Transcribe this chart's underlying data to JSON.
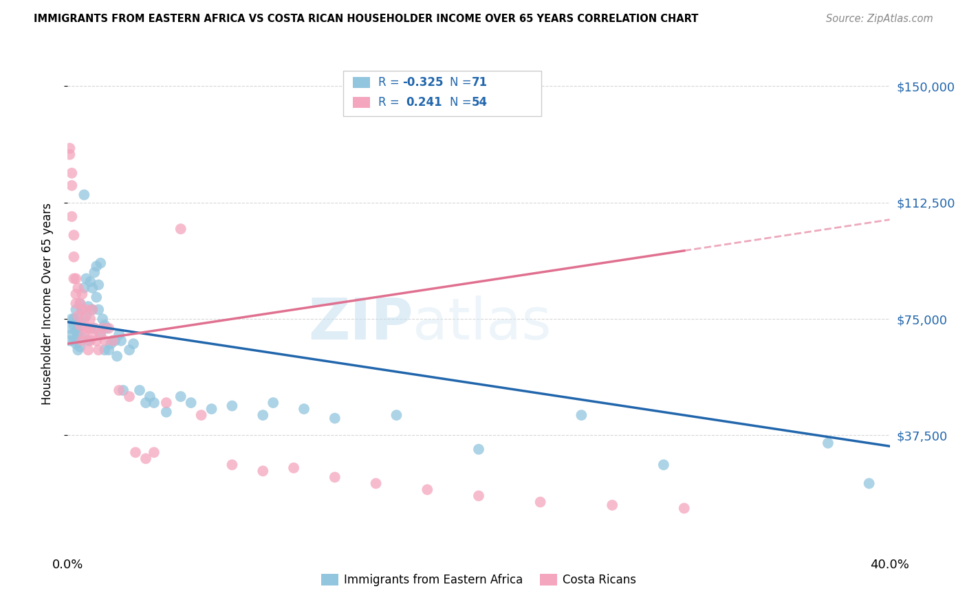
{
  "title": "IMMIGRANTS FROM EASTERN AFRICA VS COSTA RICAN HOUSEHOLDER INCOME OVER 65 YEARS CORRELATION CHART",
  "source": "Source: ZipAtlas.com",
  "ylabel": "Householder Income Over 65 years",
  "xlim": [
    0.0,
    0.4
  ],
  "ylim": [
    0,
    160000
  ],
  "yticks": [
    37500,
    75000,
    112500,
    150000
  ],
  "ytick_labels": [
    "$37,500",
    "$75,000",
    "$112,500",
    "$150,000"
  ],
  "xticks": [
    0.0,
    0.08,
    0.16,
    0.24,
    0.32,
    0.4
  ],
  "blue_color": "#92c5de",
  "pink_color": "#f4a6be",
  "blue_line_color": "#2166ac",
  "pink_line_color": "#e07090",
  "watermark_zip": "ZIP",
  "watermark_atlas": "atlas",
  "blue_r": "-0.325",
  "blue_n": "71",
  "pink_r": "0.241",
  "pink_n": "54",
  "blue_scatter_x": [
    0.001,
    0.001,
    0.002,
    0.002,
    0.003,
    0.003,
    0.003,
    0.004,
    0.004,
    0.004,
    0.005,
    0.005,
    0.005,
    0.005,
    0.006,
    0.006,
    0.006,
    0.007,
    0.007,
    0.007,
    0.008,
    0.008,
    0.009,
    0.009,
    0.01,
    0.01,
    0.011,
    0.011,
    0.012,
    0.012,
    0.013,
    0.013,
    0.014,
    0.014,
    0.015,
    0.015,
    0.016,
    0.016,
    0.017,
    0.018,
    0.018,
    0.019,
    0.02,
    0.021,
    0.022,
    0.023,
    0.024,
    0.025,
    0.026,
    0.027,
    0.03,
    0.032,
    0.035,
    0.038,
    0.04,
    0.042,
    0.048,
    0.055,
    0.06,
    0.07,
    0.08,
    0.095,
    0.1,
    0.115,
    0.13,
    0.16,
    0.2,
    0.25,
    0.29,
    0.37,
    0.39
  ],
  "blue_scatter_y": [
    68000,
    72000,
    70000,
    75000,
    73000,
    68000,
    75000,
    67000,
    71000,
    78000,
    65000,
    70000,
    72000,
    75000,
    66000,
    73000,
    80000,
    69000,
    73000,
    78000,
    115000,
    85000,
    76000,
    88000,
    68000,
    79000,
    72000,
    87000,
    78000,
    85000,
    72000,
    90000,
    82000,
    92000,
    78000,
    86000,
    70000,
    93000,
    75000,
    65000,
    73000,
    72000,
    65000,
    67000,
    68000,
    68000,
    63000,
    70000,
    68000,
    52000,
    65000,
    67000,
    52000,
    48000,
    50000,
    48000,
    45000,
    50000,
    48000,
    46000,
    47000,
    44000,
    48000,
    46000,
    43000,
    44000,
    33000,
    44000,
    28000,
    35000,
    22000
  ],
  "pink_scatter_x": [
    0.001,
    0.001,
    0.002,
    0.002,
    0.002,
    0.003,
    0.003,
    0.003,
    0.004,
    0.004,
    0.004,
    0.005,
    0.005,
    0.006,
    0.006,
    0.007,
    0.007,
    0.007,
    0.008,
    0.008,
    0.009,
    0.009,
    0.01,
    0.01,
    0.011,
    0.011,
    0.012,
    0.012,
    0.013,
    0.014,
    0.015,
    0.016,
    0.017,
    0.018,
    0.02,
    0.022,
    0.025,
    0.03,
    0.033,
    0.038,
    0.042,
    0.048,
    0.055,
    0.065,
    0.08,
    0.095,
    0.11,
    0.13,
    0.15,
    0.175,
    0.2,
    0.23,
    0.265,
    0.3
  ],
  "pink_scatter_y": [
    128000,
    130000,
    118000,
    122000,
    108000,
    88000,
    95000,
    102000,
    83000,
    88000,
    80000,
    85000,
    76000,
    80000,
    73000,
    83000,
    68000,
    78000,
    70000,
    75000,
    72000,
    78000,
    65000,
    72000,
    68000,
    75000,
    70000,
    78000,
    72000,
    68000,
    65000,
    70000,
    72000,
    68000,
    72000,
    68000,
    52000,
    50000,
    32000,
    30000,
    32000,
    48000,
    104000,
    44000,
    28000,
    26000,
    27000,
    24000,
    22000,
    20000,
    18000,
    16000,
    15000,
    14000
  ]
}
